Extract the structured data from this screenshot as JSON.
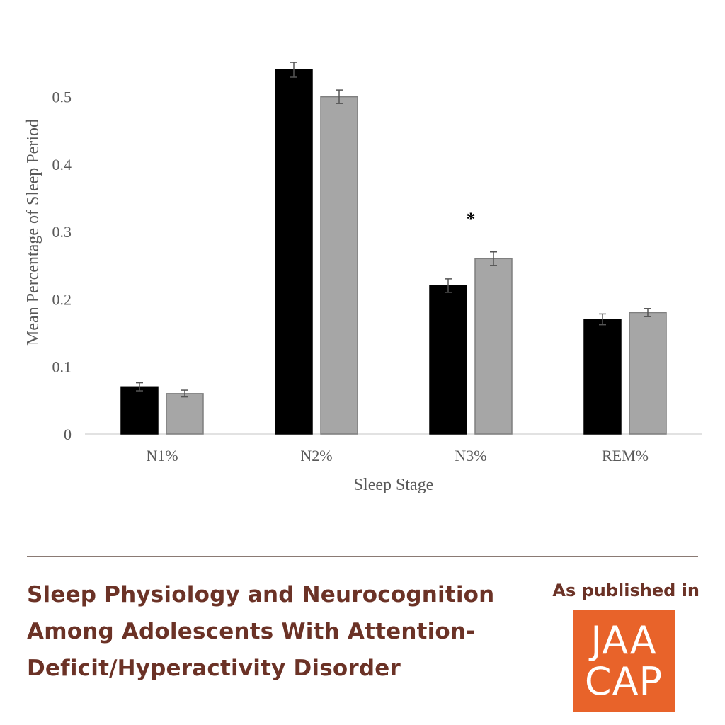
{
  "chart_data": {
    "type": "bar",
    "xlabel": "Sleep Stage",
    "ylabel": "Mean Percentage of Sleep Period",
    "categories": [
      "N1%",
      "N2%",
      "N3%",
      "REM%"
    ],
    "ylim": [
      0,
      0.55
    ],
    "yticks": [
      "0",
      "0.1",
      "0.2",
      "0.3",
      "0.4",
      "0.5"
    ],
    "grid": false,
    "series": [
      {
        "values": [
          0.07,
          0.54,
          0.22,
          0.17
        ],
        "errors": [
          0.006,
          0.011,
          0.01,
          0.008
        ],
        "color": "#000000"
      },
      {
        "values": [
          0.06,
          0.5,
          0.26,
          0.18
        ],
        "errors": [
          0.005,
          0.01,
          0.01,
          0.006
        ],
        "color": "#a6a6a6"
      }
    ],
    "annotations": [
      {
        "text": "*",
        "category": "N3%"
      }
    ]
  },
  "footer": {
    "title_lines": [
      "Sleep Physiology and Neurocognition",
      "Among Adolescents With Attention-",
      "Deficit/Hyperactivity Disorder"
    ],
    "published_label": "As published in",
    "logo_lines": [
      "JAA",
      "CAP"
    ],
    "logo_color": "#e8632a",
    "text_color": "#6b3226"
  }
}
